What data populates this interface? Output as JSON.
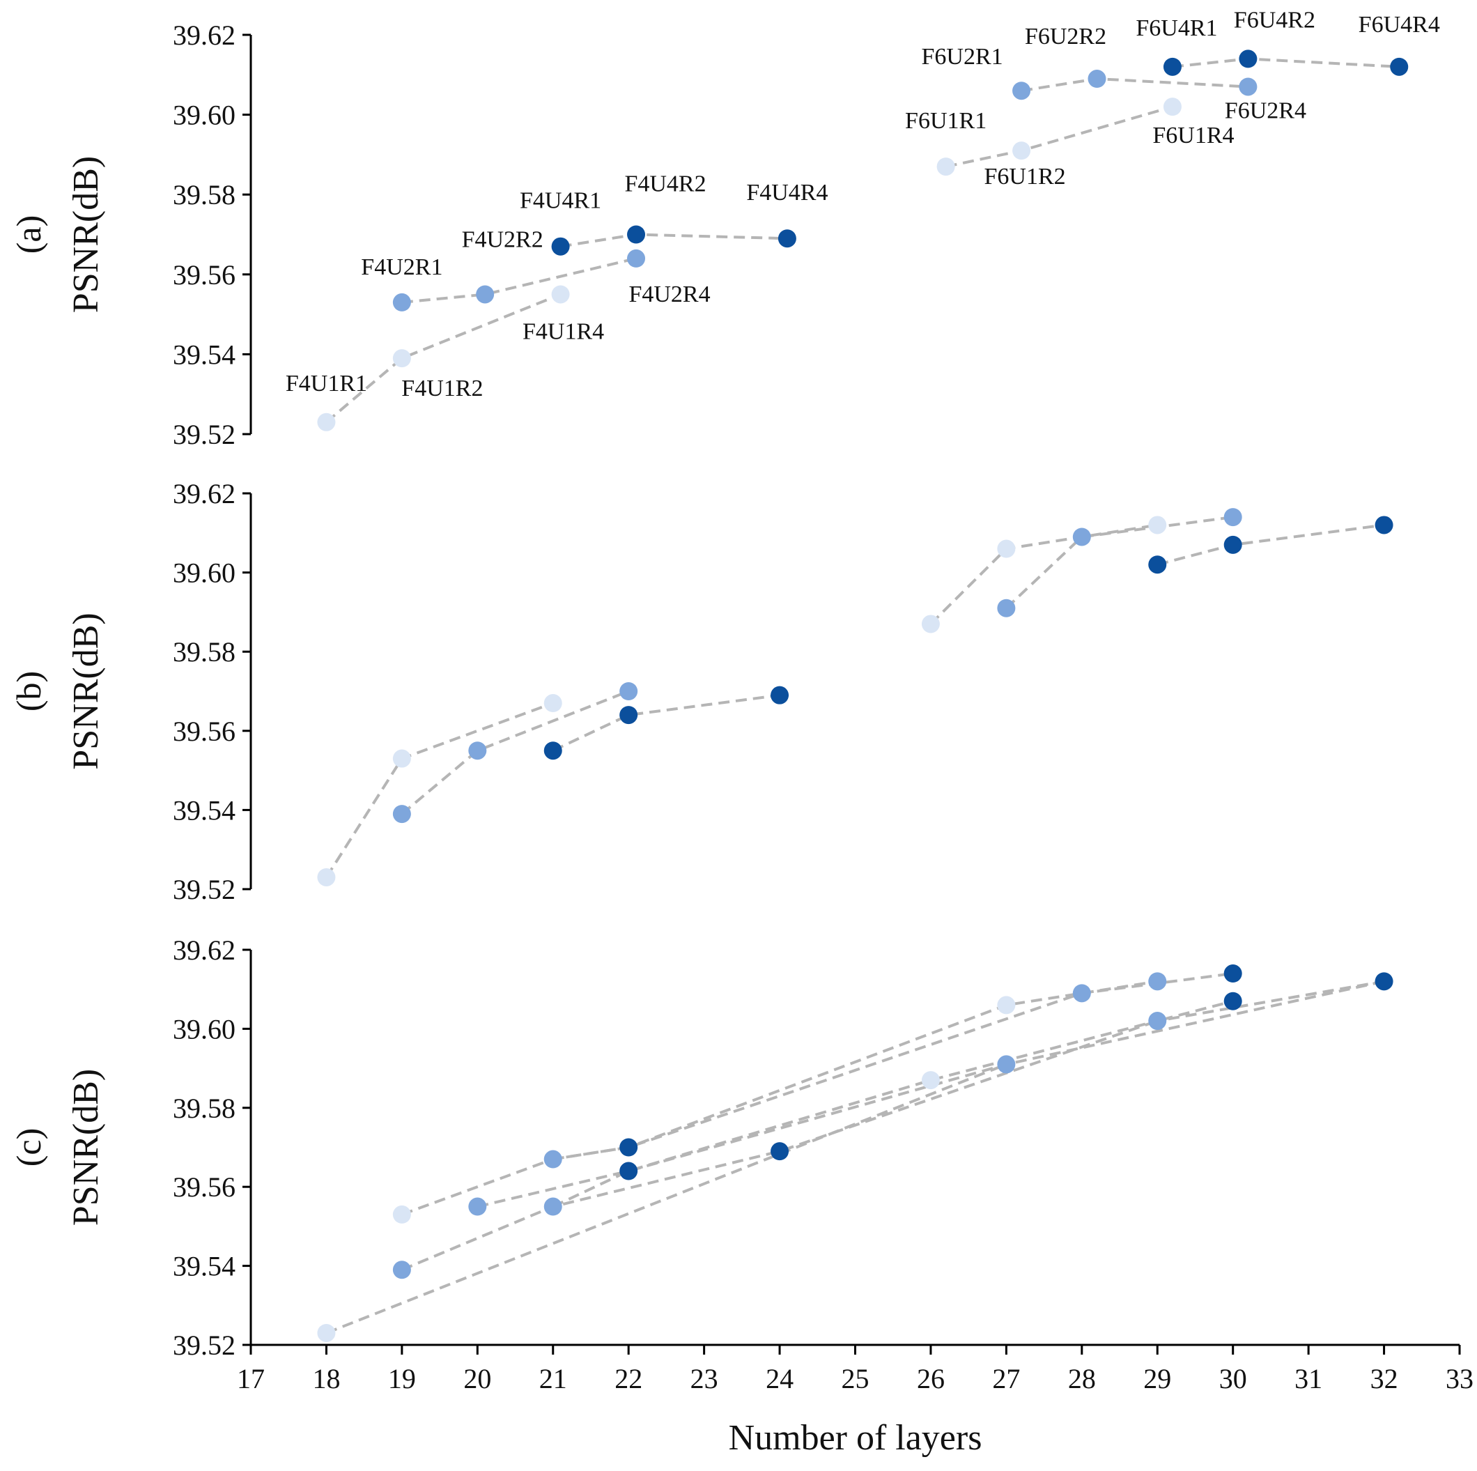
{
  "colors": {
    "light": "#d9e5f5",
    "mid": "#7ea6dc",
    "dark": "#0b4f9c",
    "line": "#b5b5b5",
    "axis": "#000000"
  },
  "chart_data": [
    {
      "type": "scatter",
      "panel_label": "(a)",
      "xlabel": "",
      "ylabel": "PSNR(dB)",
      "xlim": [
        17,
        33
      ],
      "ylim": [
        39.52,
        39.62
      ],
      "yticks": [
        "39.52",
        "39.54",
        "39.56",
        "39.58",
        "39.60",
        "39.62"
      ],
      "grid": false,
      "points": [
        {
          "label": "F4U1R1",
          "x": 18.0,
          "y": 39.523,
          "shade": "light"
        },
        {
          "label": "F4U1R2",
          "x": 19.0,
          "y": 39.539,
          "shade": "light"
        },
        {
          "label": "F4U1R4",
          "x": 21.1,
          "y": 39.555,
          "shade": "light"
        },
        {
          "label": "F4U2R1",
          "x": 19.0,
          "y": 39.553,
          "shade": "mid"
        },
        {
          "label": "F4U2R2",
          "x": 20.1,
          "y": 39.555,
          "shade": "mid"
        },
        {
          "label": "F4U2R4",
          "x": 22.1,
          "y": 39.564,
          "shade": "mid"
        },
        {
          "label": "F4U4R1",
          "x": 21.1,
          "y": 39.567,
          "shade": "dark"
        },
        {
          "label": "F4U4R2",
          "x": 22.1,
          "y": 39.57,
          "shade": "dark"
        },
        {
          "label": "F4U4R4",
          "x": 24.1,
          "y": 39.569,
          "shade": "dark"
        },
        {
          "label": "F6U1R1",
          "x": 26.2,
          "y": 39.587,
          "shade": "light"
        },
        {
          "label": "F6U1R2",
          "x": 27.2,
          "y": 39.591,
          "shade": "light"
        },
        {
          "label": "F6U1R4",
          "x": 29.2,
          "y": 39.602,
          "shade": "light"
        },
        {
          "label": "F6U2R1",
          "x": 27.2,
          "y": 39.606,
          "shade": "mid"
        },
        {
          "label": "F6U2R2",
          "x": 28.2,
          "y": 39.609,
          "shade": "mid"
        },
        {
          "label": "F6U2R4",
          "x": 30.2,
          "y": 39.607,
          "shade": "mid"
        },
        {
          "label": "F6U4R1",
          "x": 29.2,
          "y": 39.612,
          "shade": "dark"
        },
        {
          "label": "F6U4R2",
          "x": 30.2,
          "y": 39.614,
          "shade": "dark"
        },
        {
          "label": "F6U4R4",
          "x": 32.2,
          "y": 39.612,
          "shade": "dark"
        }
      ],
      "series": [
        {
          "points": [
            0,
            1,
            2
          ]
        },
        {
          "points": [
            3,
            4,
            5
          ]
        },
        {
          "points": [
            6,
            7,
            8
          ]
        },
        {
          "points": [
            9,
            10,
            11
          ]
        },
        {
          "points": [
            12,
            13,
            14
          ]
        },
        {
          "points": [
            15,
            16,
            17
          ]
        }
      ]
    },
    {
      "type": "scatter",
      "panel_label": "(b)",
      "xlabel": "",
      "ylabel": "PSNR(dB)",
      "xlim": [
        17,
        33
      ],
      "ylim": [
        39.52,
        39.62
      ],
      "yticks": [
        "39.52",
        "39.54",
        "39.56",
        "39.58",
        "39.60",
        "39.62"
      ],
      "grid": false,
      "points": [
        {
          "x": 18.0,
          "y": 39.523,
          "shade": "light"
        },
        {
          "x": 19.0,
          "y": 39.553,
          "shade": "light"
        },
        {
          "x": 21.0,
          "y": 39.567,
          "shade": "light"
        },
        {
          "x": 19.0,
          "y": 39.539,
          "shade": "mid"
        },
        {
          "x": 20.0,
          "y": 39.555,
          "shade": "mid"
        },
        {
          "x": 22.0,
          "y": 39.57,
          "shade": "mid"
        },
        {
          "x": 21.0,
          "y": 39.555,
          "shade": "dark"
        },
        {
          "x": 22.0,
          "y": 39.564,
          "shade": "dark"
        },
        {
          "x": 24.0,
          "y": 39.569,
          "shade": "dark"
        },
        {
          "x": 26.0,
          "y": 39.587,
          "shade": "light"
        },
        {
          "x": 27.0,
          "y": 39.606,
          "shade": "light"
        },
        {
          "x": 29.0,
          "y": 39.612,
          "shade": "light"
        },
        {
          "x": 27.0,
          "y": 39.591,
          "shade": "mid"
        },
        {
          "x": 28.0,
          "y": 39.609,
          "shade": "mid"
        },
        {
          "x": 30.0,
          "y": 39.614,
          "shade": "mid"
        },
        {
          "x": 29.0,
          "y": 39.602,
          "shade": "dark"
        },
        {
          "x": 30.0,
          "y": 39.607,
          "shade": "dark"
        },
        {
          "x": 32.0,
          "y": 39.612,
          "shade": "dark"
        }
      ],
      "series": [
        {
          "points": [
            0,
            1,
            2
          ]
        },
        {
          "points": [
            3,
            4,
            5
          ]
        },
        {
          "points": [
            6,
            7,
            8
          ]
        },
        {
          "points": [
            9,
            10,
            11
          ]
        },
        {
          "points": [
            12,
            13,
            14
          ]
        },
        {
          "points": [
            15,
            16,
            17
          ]
        }
      ]
    },
    {
      "type": "scatter",
      "panel_label": "(c)",
      "xlabel": "Number of layers",
      "ylabel": "PSNR(dB)",
      "xlim": [
        17,
        33
      ],
      "ylim": [
        39.52,
        39.62
      ],
      "xticks": [
        "17",
        "18",
        "19",
        "20",
        "21",
        "22",
        "23",
        "24",
        "25",
        "26",
        "27",
        "28",
        "29",
        "30",
        "31",
        "32",
        "33"
      ],
      "yticks": [
        "39.52",
        "39.54",
        "39.56",
        "39.58",
        "39.60",
        "39.62"
      ],
      "grid": false,
      "points": [
        {
          "x": 18,
          "y": 39.523,
          "shade": "light"
        },
        {
          "x": 19,
          "y": 39.553,
          "shade": "light"
        },
        {
          "x": 19,
          "y": 39.539,
          "shade": "mid"
        },
        {
          "x": 20,
          "y": 39.555,
          "shade": "mid"
        },
        {
          "x": 21,
          "y": 39.567,
          "shade": "mid"
        },
        {
          "x": 21,
          "y": 39.555,
          "shade": "mid"
        },
        {
          "x": 22,
          "y": 39.57,
          "shade": "dark"
        },
        {
          "x": 22,
          "y": 39.564,
          "shade": "dark"
        },
        {
          "x": 24,
          "y": 39.569,
          "shade": "dark"
        },
        {
          "x": 26,
          "y": 39.587,
          "shade": "light"
        },
        {
          "x": 27,
          "y": 39.606,
          "shade": "light"
        },
        {
          "x": 27,
          "y": 39.591,
          "shade": "mid"
        },
        {
          "x": 28,
          "y": 39.609,
          "shade": "mid"
        },
        {
          "x": 29,
          "y": 39.612,
          "shade": "mid"
        },
        {
          "x": 29,
          "y": 39.602,
          "shade": "mid"
        },
        {
          "x": 30,
          "y": 39.614,
          "shade": "dark"
        },
        {
          "x": 30,
          "y": 39.607,
          "shade": "dark"
        },
        {
          "x": 32,
          "y": 39.612,
          "shade": "dark"
        }
      ],
      "series": [
        {
          "points": [
            0,
            11
          ]
        },
        {
          "points": [
            2,
            5,
            8,
            14,
            16
          ]
        },
        {
          "points": [
            1,
            4,
            6,
            12,
            15
          ]
        },
        {
          "points": [
            3,
            7,
            11,
            17
          ]
        },
        {
          "points": [
            4,
            6,
            10,
            13
          ]
        },
        {
          "points": [
            5,
            7,
            9,
            14,
            17
          ]
        }
      ]
    }
  ]
}
